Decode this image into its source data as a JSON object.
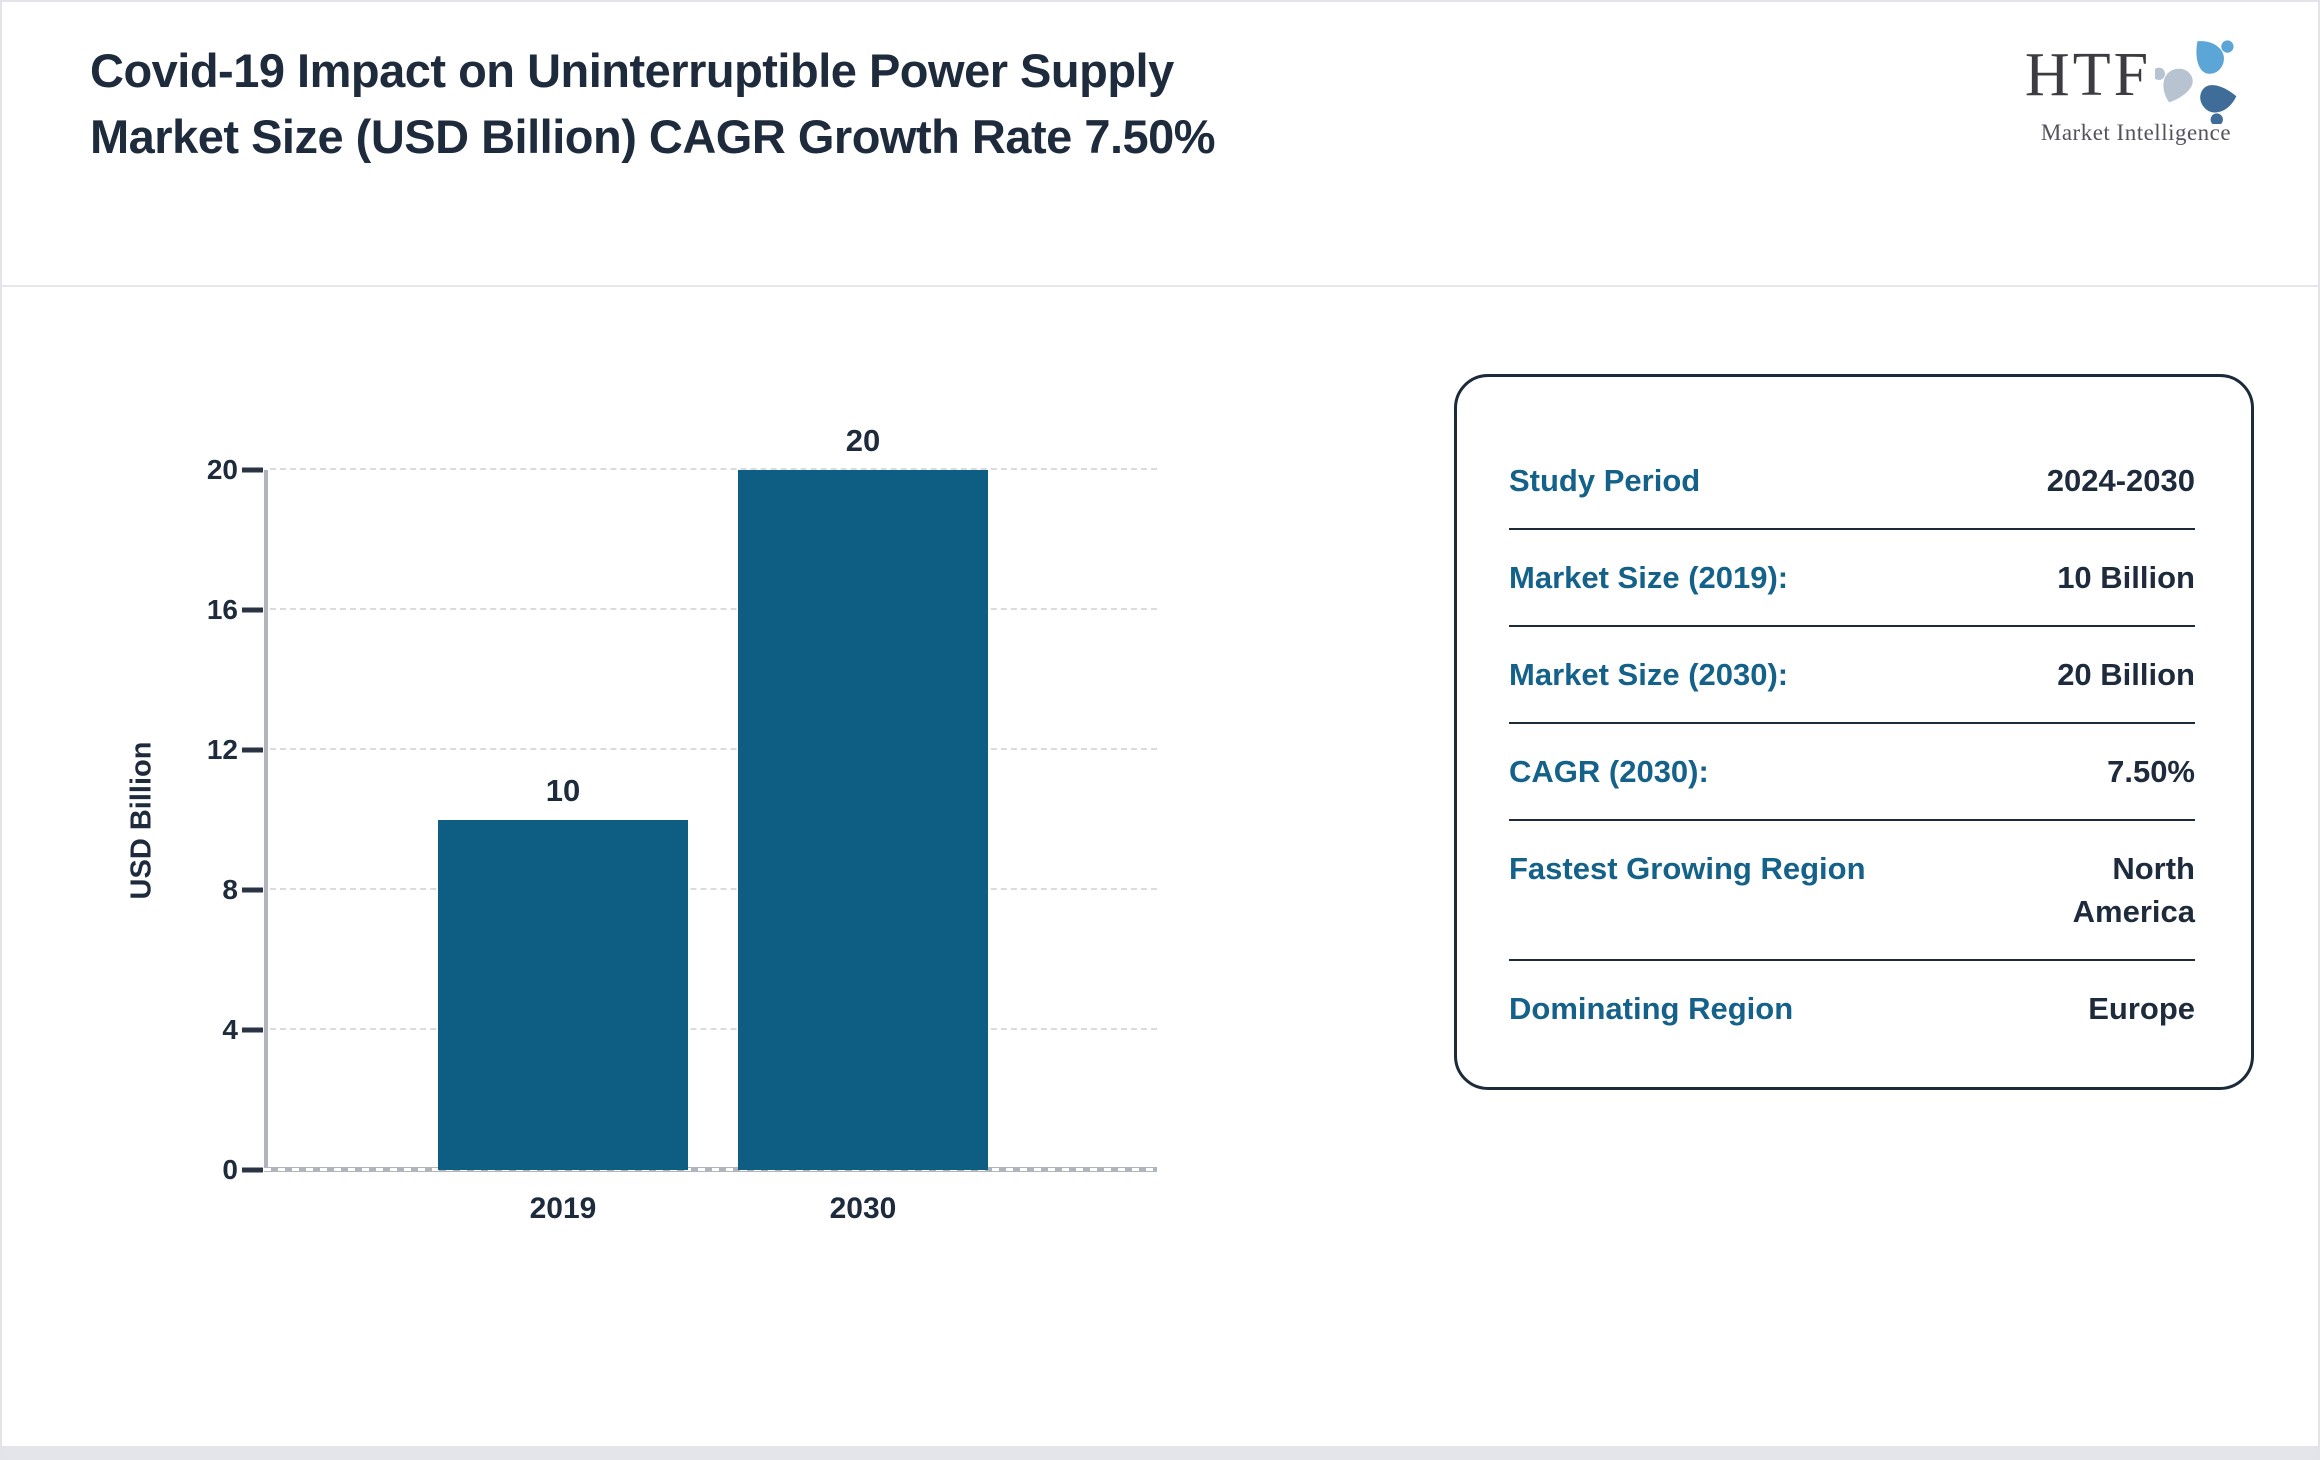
{
  "header": {
    "title": "Covid-19 Impact on Uninterruptible Power Supply Market Size (USD Billion) CAGR Growth Rate 7.50%"
  },
  "logo": {
    "name": "HTF",
    "subtitle": "Market Intelligence"
  },
  "chart_data": {
    "type": "bar",
    "categories": [
      "2019",
      "2030"
    ],
    "values": [
      10,
      20
    ],
    "data_labels": [
      "10",
      "20"
    ],
    "title": "",
    "xlabel": "",
    "ylabel": "USD Billion",
    "ylim": [
      0,
      20
    ],
    "yticks": [
      0,
      4,
      8,
      12,
      16,
      20
    ],
    "grid": "horizontal-dashed",
    "legend": "none",
    "bar_color": "#0e5e84"
  },
  "info_panel": {
    "rows": [
      {
        "label": "Study Period",
        "value": "2024-2030"
      },
      {
        "label": "Market Size (2019):",
        "value": "10 Billion"
      },
      {
        "label": "Market Size (2030):",
        "value": "20 Billion"
      },
      {
        "label": "CAGR (2030):",
        "value": "7.50%"
      },
      {
        "label": "Fastest Growing Region",
        "value": "North America"
      },
      {
        "label": "Dominating Region",
        "value": "Europe"
      }
    ]
  },
  "colors": {
    "bar": "#0e5e84",
    "dark_navy_text": "#1e2b3c",
    "teal_label": "#14618a",
    "axis_gray": "#b0b4bc",
    "gridline": "#dadbdf",
    "page_border": "#e3e4e9",
    "swirl_light_blue": "#5ba6d6",
    "swirl_steel_blue": "#3f6c99",
    "swirl_gray_blue": "#b8c3d1"
  }
}
